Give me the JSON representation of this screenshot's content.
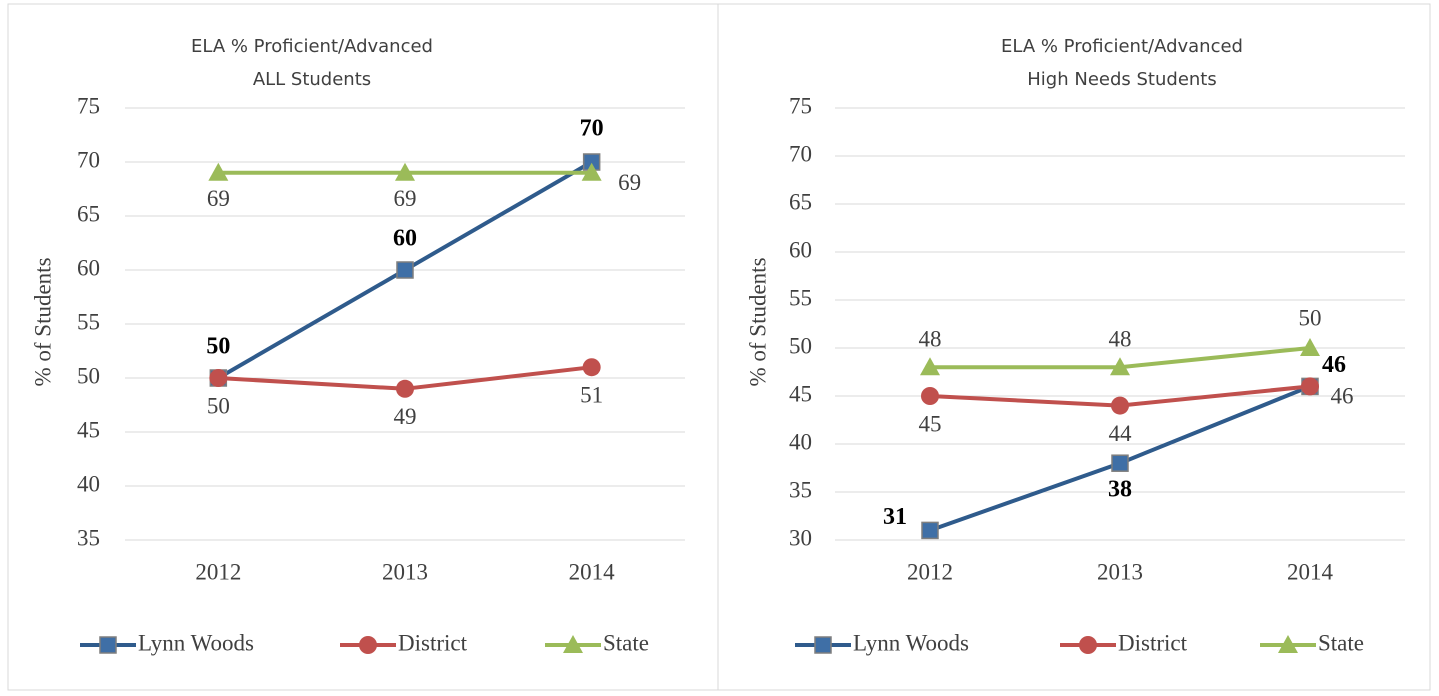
{
  "chart_data": [
    {
      "type": "line",
      "title": "ELA % Proficient/Advanced",
      "subtitle": "ALL Students",
      "ylabel": "% of Students",
      "categories": [
        "2012",
        "2013",
        "2014"
      ],
      "series": [
        {
          "name": "Lynn Woods",
          "color": "#2f5b8c",
          "values": [
            50,
            60,
            70
          ]
        },
        {
          "name": "District",
          "color": "#c0504d",
          "values": [
            50,
            49,
            51
          ]
        },
        {
          "name": "State",
          "color": "#9bbb59",
          "values": [
            69,
            69,
            69
          ]
        }
      ],
      "ylim": [
        35,
        75
      ],
      "yticks": [
        35,
        40,
        45,
        50,
        55,
        60,
        65,
        70,
        75
      ],
      "grid": true,
      "legend": "bottom"
    },
    {
      "type": "line",
      "title": "ELA % Proficient/Advanced",
      "subtitle": "High Needs Students",
      "ylabel": "% of Students",
      "categories": [
        "2012",
        "2013",
        "2014"
      ],
      "series": [
        {
          "name": "Lynn Woods",
          "color": "#2f5b8c",
          "values": [
            31,
            38,
            46
          ]
        },
        {
          "name": "District",
          "color": "#c0504d",
          "values": [
            45,
            44,
            46
          ]
        },
        {
          "name": "State",
          "color": "#9bbb59",
          "values": [
            48,
            48,
            50
          ]
        }
      ],
      "ylim": [
        30,
        75
      ],
      "yticks": [
        30,
        35,
        40,
        45,
        50,
        55,
        60,
        65,
        70,
        75
      ],
      "grid": true,
      "legend": "bottom"
    }
  ]
}
